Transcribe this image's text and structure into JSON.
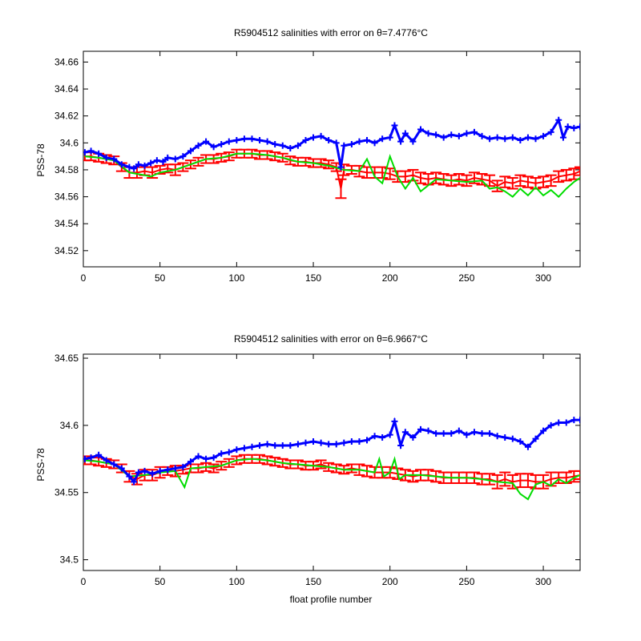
{
  "chart_data": [
    {
      "type": "line",
      "title": "R5904512 salinities with error on θ=7.4776°C",
      "xlabel": "",
      "ylabel": "PSS-78",
      "xlim": [
        0,
        324
      ],
      "ylim": [
        34.508,
        34.668
      ],
      "xticks": [
        0,
        50,
        100,
        150,
        200,
        250,
        300
      ],
      "yticks": [
        34.52,
        34.54,
        34.56,
        34.58,
        34.6,
        34.62,
        34.64,
        34.66
      ],
      "grid": false,
      "legend": "none",
      "series": [
        {
          "color": "#0000ff",
          "marker": "+",
          "x": [
            1,
            5,
            10,
            15,
            20,
            25,
            30,
            33,
            36,
            40,
            44,
            48,
            52,
            55,
            60,
            65,
            70,
            75,
            80,
            85,
            90,
            95,
            100,
            105,
            110,
            115,
            120,
            125,
            130,
            135,
            140,
            145,
            150,
            155,
            160,
            165,
            168,
            170,
            175,
            180,
            185,
            190,
            195,
            200,
            203,
            207,
            210,
            215,
            220,
            225,
            230,
            235,
            240,
            245,
            250,
            255,
            260,
            265,
            270,
            275,
            280,
            285,
            290,
            295,
            300,
            305,
            310,
            313,
            316,
            320,
            324
          ],
          "y": [
            34.593,
            34.594,
            34.592,
            34.589,
            34.588,
            34.584,
            34.582,
            34.581,
            34.584,
            34.583,
            34.585,
            34.587,
            34.586,
            34.589,
            34.588,
            34.59,
            34.594,
            34.598,
            34.601,
            34.597,
            34.599,
            34.601,
            34.602,
            34.603,
            34.603,
            34.602,
            34.601,
            34.599,
            34.598,
            34.596,
            34.598,
            34.602,
            34.604,
            34.605,
            34.602,
            34.6,
            34.582,
            34.598,
            34.599,
            34.601,
            34.602,
            34.6,
            34.603,
            34.604,
            34.613,
            34.601,
            34.607,
            34.601,
            34.61,
            34.607,
            34.606,
            34.604,
            34.606,
            34.605,
            34.607,
            34.608,
            34.605,
            34.603,
            34.604,
            34.603,
            34.604,
            34.602,
            34.604,
            34.603,
            34.605,
            34.608,
            34.617,
            34.604,
            34.612,
            34.611,
            34.612
          ]
        },
        {
          "color": "#ff0000",
          "marker": "errorbar",
          "x": [
            1,
            5,
            10,
            15,
            20,
            25,
            30,
            35,
            40,
            45,
            50,
            55,
            60,
            65,
            70,
            75,
            80,
            85,
            90,
            95,
            100,
            105,
            110,
            115,
            120,
            125,
            130,
            135,
            140,
            145,
            150,
            155,
            160,
            165,
            168,
            170,
            175,
            180,
            185,
            190,
            195,
            200,
            205,
            210,
            215,
            220,
            225,
            230,
            235,
            240,
            245,
            250,
            255,
            260,
            265,
            270,
            275,
            280,
            285,
            290,
            295,
            300,
            305,
            310,
            315,
            320,
            324
          ],
          "y": [
            34.59,
            34.59,
            34.589,
            34.588,
            34.587,
            34.582,
            34.578,
            34.578,
            34.579,
            34.578,
            34.58,
            34.581,
            34.58,
            34.582,
            34.584,
            34.586,
            34.588,
            34.588,
            34.589,
            34.59,
            34.592,
            34.592,
            34.592,
            34.591,
            34.591,
            34.59,
            34.589,
            34.587,
            34.586,
            34.586,
            34.585,
            34.585,
            34.584,
            34.582,
            34.566,
            34.58,
            34.58,
            34.579,
            34.578,
            34.578,
            34.578,
            34.577,
            34.575,
            34.575,
            34.576,
            34.574,
            34.573,
            34.574,
            34.573,
            34.572,
            34.573,
            34.572,
            34.574,
            34.573,
            34.572,
            34.568,
            34.571,
            34.57,
            34.572,
            34.571,
            34.57,
            34.571,
            34.572,
            34.575,
            34.576,
            34.577,
            34.579
          ],
          "err": [
            0.003,
            0.003,
            0.003,
            0.003,
            0.003,
            0.003,
            0.004,
            0.004,
            0.003,
            0.004,
            0.003,
            0.003,
            0.004,
            0.003,
            0.003,
            0.003,
            0.003,
            0.003,
            0.003,
            0.003,
            0.003,
            0.003,
            0.003,
            0.003,
            0.003,
            0.003,
            0.003,
            0.003,
            0.003,
            0.003,
            0.003,
            0.003,
            0.003,
            0.003,
            0.007,
            0.004,
            0.003,
            0.004,
            0.004,
            0.004,
            0.004,
            0.004,
            0.004,
            0.004,
            0.004,
            0.004,
            0.004,
            0.004,
            0.004,
            0.004,
            0.004,
            0.004,
            0.004,
            0.004,
            0.004,
            0.004,
            0.004,
            0.004,
            0.004,
            0.004,
            0.004,
            0.004,
            0.004,
            0.004,
            0.004,
            0.004,
            0.003
          ]
        },
        {
          "color": "#00dd00",
          "marker": "none",
          "x": [
            1,
            10,
            20,
            30,
            35,
            40,
            44,
            50,
            60,
            70,
            80,
            90,
            100,
            110,
            120,
            130,
            140,
            150,
            160,
            170,
            180,
            185,
            190,
            195,
            200,
            205,
            210,
            215,
            220,
            230,
            240,
            250,
            260,
            265,
            270,
            275,
            280,
            285,
            290,
            295,
            300,
            305,
            310,
            315,
            320,
            324
          ],
          "y": [
            34.59,
            34.589,
            34.587,
            34.578,
            34.577,
            34.576,
            34.575,
            34.578,
            34.58,
            34.584,
            34.588,
            34.589,
            34.592,
            34.592,
            34.591,
            34.589,
            34.586,
            34.585,
            34.583,
            34.58,
            34.579,
            34.588,
            34.575,
            34.57,
            34.59,
            34.575,
            34.566,
            34.574,
            34.564,
            34.573,
            34.572,
            34.571,
            34.572,
            34.566,
            34.567,
            34.564,
            34.56,
            34.566,
            34.561,
            34.567,
            34.561,
            34.565,
            34.56,
            34.566,
            34.571,
            34.574
          ]
        }
      ]
    },
    {
      "type": "line",
      "title": "R5904512 salinities with error on θ=6.9667°C",
      "xlabel": "float profile number",
      "ylabel": "PSS-78",
      "xlim": [
        0,
        324
      ],
      "ylim": [
        34.492,
        34.653
      ],
      "xticks": [
        0,
        50,
        100,
        150,
        200,
        250,
        300
      ],
      "yticks": [
        34.5,
        34.55,
        34.6,
        34.65
      ],
      "grid": false,
      "legend": "none",
      "series": [
        {
          "color": "#0000ff",
          "marker": "+",
          "x": [
            1,
            5,
            10,
            15,
            20,
            25,
            30,
            33,
            36,
            40,
            45,
            50,
            55,
            60,
            65,
            70,
            75,
            80,
            85,
            90,
            95,
            100,
            105,
            110,
            115,
            120,
            125,
            130,
            135,
            140,
            145,
            150,
            155,
            160,
            165,
            170,
            175,
            180,
            185,
            190,
            195,
            200,
            203,
            207,
            210,
            215,
            220,
            225,
            230,
            235,
            240,
            245,
            250,
            255,
            260,
            265,
            270,
            275,
            280,
            285,
            290,
            295,
            300,
            305,
            310,
            315,
            320,
            324
          ],
          "y": [
            34.575,
            34.576,
            34.578,
            34.574,
            34.571,
            34.568,
            34.562,
            34.558,
            34.565,
            34.566,
            34.564,
            34.566,
            34.567,
            34.568,
            34.569,
            34.573,
            34.577,
            34.575,
            34.576,
            34.579,
            34.58,
            34.582,
            34.583,
            34.584,
            34.585,
            34.586,
            34.585,
            34.585,
            34.585,
            34.586,
            34.587,
            34.588,
            34.587,
            34.586,
            34.586,
            34.587,
            34.588,
            34.588,
            34.589,
            34.592,
            34.591,
            34.593,
            34.603,
            34.585,
            34.595,
            34.591,
            34.597,
            34.596,
            34.594,
            34.594,
            34.594,
            34.596,
            34.593,
            34.595,
            34.594,
            34.594,
            34.592,
            34.591,
            34.59,
            34.588,
            34.584,
            34.59,
            34.596,
            34.6,
            34.602,
            34.602,
            34.604,
            34.604
          ]
        },
        {
          "color": "#ff0000",
          "marker": "errorbar",
          "x": [
            1,
            5,
            10,
            15,
            20,
            25,
            30,
            35,
            40,
            45,
            50,
            55,
            60,
            65,
            70,
            75,
            80,
            85,
            90,
            95,
            100,
            105,
            110,
            115,
            120,
            125,
            130,
            135,
            140,
            145,
            150,
            155,
            160,
            165,
            170,
            175,
            180,
            185,
            190,
            195,
            200,
            205,
            210,
            215,
            220,
            225,
            230,
            235,
            240,
            245,
            250,
            255,
            260,
            265,
            270,
            275,
            280,
            285,
            290,
            295,
            300,
            305,
            310,
            315,
            320,
            324
          ],
          "y": [
            34.574,
            34.574,
            34.573,
            34.572,
            34.571,
            34.568,
            34.562,
            34.56,
            34.563,
            34.563,
            34.565,
            34.566,
            34.566,
            34.567,
            34.568,
            34.568,
            34.569,
            34.568,
            34.57,
            34.572,
            34.574,
            34.575,
            34.575,
            34.575,
            34.574,
            34.573,
            34.572,
            34.571,
            34.571,
            34.57,
            34.57,
            34.571,
            34.569,
            34.568,
            34.567,
            34.568,
            34.567,
            34.566,
            34.565,
            34.565,
            34.565,
            34.564,
            34.563,
            34.562,
            34.563,
            34.563,
            34.562,
            34.561,
            34.561,
            34.561,
            34.561,
            34.561,
            34.56,
            34.56,
            34.558,
            34.56,
            34.558,
            34.559,
            34.559,
            34.558,
            34.558,
            34.56,
            34.561,
            34.561,
            34.562,
            34.563
          ],
          "err": [
            0.003,
            0.003,
            0.003,
            0.003,
            0.003,
            0.003,
            0.004,
            0.004,
            0.004,
            0.004,
            0.004,
            0.003,
            0.004,
            0.003,
            0.003,
            0.003,
            0.003,
            0.003,
            0.003,
            0.003,
            0.003,
            0.003,
            0.003,
            0.003,
            0.003,
            0.003,
            0.003,
            0.003,
            0.003,
            0.003,
            0.003,
            0.003,
            0.003,
            0.003,
            0.003,
            0.003,
            0.004,
            0.004,
            0.004,
            0.004,
            0.004,
            0.004,
            0.004,
            0.004,
            0.004,
            0.004,
            0.004,
            0.004,
            0.004,
            0.004,
            0.004,
            0.004,
            0.004,
            0.004,
            0.005,
            0.005,
            0.005,
            0.005,
            0.005,
            0.005,
            0.005,
            0.005,
            0.004,
            0.004,
            0.004,
            0.003
          ]
        },
        {
          "color": "#00dd00",
          "marker": "none",
          "x": [
            1,
            10,
            20,
            30,
            40,
            50,
            60,
            66,
            70,
            80,
            90,
            100,
            110,
            120,
            130,
            140,
            150,
            160,
            170,
            180,
            190,
            193,
            196,
            200,
            203,
            206,
            210,
            220,
            230,
            240,
            250,
            260,
            270,
            280,
            285,
            290,
            295,
            300,
            305,
            310,
            315,
            320,
            324
          ],
          "y": [
            34.574,
            34.573,
            34.571,
            34.562,
            34.563,
            34.565,
            34.566,
            34.554,
            34.568,
            34.569,
            34.57,
            34.574,
            34.575,
            34.574,
            34.572,
            34.571,
            34.57,
            34.569,
            34.567,
            34.567,
            34.565,
            34.575,
            34.562,
            34.565,
            34.575,
            34.56,
            34.563,
            34.563,
            34.562,
            34.561,
            34.561,
            34.56,
            34.558,
            34.557,
            34.549,
            34.545,
            34.556,
            34.558,
            34.555,
            34.56,
            34.557,
            34.561,
            34.563
          ]
        }
      ]
    }
  ]
}
